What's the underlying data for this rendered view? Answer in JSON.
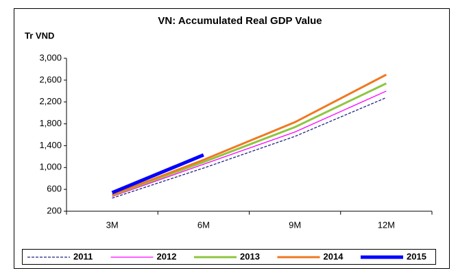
{
  "chart_data": {
    "type": "line",
    "title": "VN: Accumulated Real GDP Value",
    "y_label": "Tr VND",
    "categories": [
      "3M",
      "6M",
      "9M",
      "12M"
    ],
    "series": [
      {
        "name": "2011",
        "color": "#1a237e",
        "dashed": true,
        "line_width": 1.3,
        "values": [
          440,
          990,
          1570,
          2280
        ]
      },
      {
        "name": "2012",
        "color": "#ff00ff",
        "dashed": false,
        "line_width": 1.3,
        "values": [
          470,
          1060,
          1650,
          2400
        ]
      },
      {
        "name": "2013",
        "color": "#8dc63f",
        "dashed": false,
        "line_width": 3,
        "values": [
          490,
          1100,
          1740,
          2540
        ]
      },
      {
        "name": "2014",
        "color": "#f07822",
        "dashed": false,
        "line_width": 3,
        "values": [
          500,
          1140,
          1830,
          2700
        ]
      },
      {
        "name": "2015",
        "color": "#0000ff",
        "dashed": false,
        "line_width": 5,
        "values": [
          540,
          1230,
          null,
          null
        ]
      }
    ],
    "ylim": [
      200,
      3000
    ],
    "yticks": [
      200,
      600,
      {
        "value": 1000,
        "label": "1,000"
      },
      {
        "value": 1400,
        "label": "1,400"
      },
      {
        "value": 1800,
        "label": "1,800"
      },
      {
        "value": 2200,
        "label": "2,200"
      },
      {
        "value": 2600,
        "label": "2,600"
      },
      {
        "value": 3000,
        "label": "3,000"
      }
    ],
    "grid": false,
    "legend": "bottom"
  }
}
